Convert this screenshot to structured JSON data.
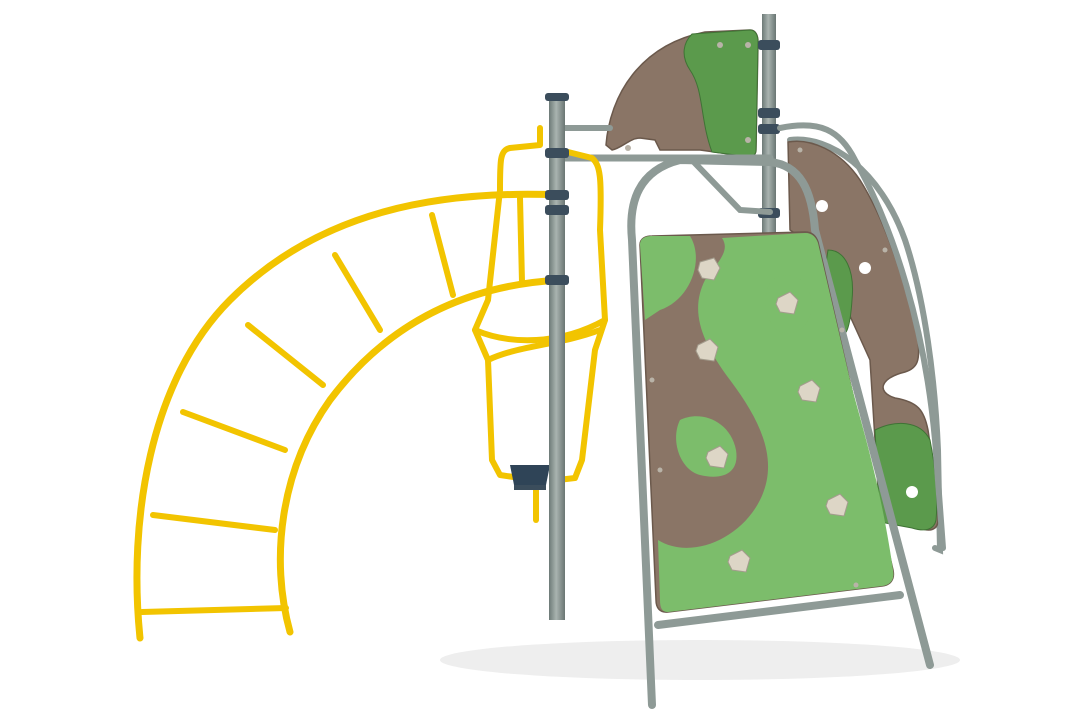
{
  "scene": {
    "subject": "playground-climbing-frame",
    "colors": {
      "background": "#ffffff",
      "yellow_bars": "#f2c400",
      "yellow_shade": "#c99e00",
      "steel_pole": "#8e9a96",
      "steel_shade": "#5f6b68",
      "clamp": "#3b4d5c",
      "panel_brown": "#8a7566",
      "panel_green": "#7cbd6b",
      "panel_dark_green": "#4f8a43",
      "hold": "#ddd6c6",
      "seat": "#2f4457"
    },
    "components": [
      "arched-horizontal-ladder",
      "hanging-swing-frame",
      "climbing-wall-panel",
      "curved-side-panel",
      "top-roof-panel",
      "steel-posts"
    ],
    "climbing_holds_count": 9
  }
}
